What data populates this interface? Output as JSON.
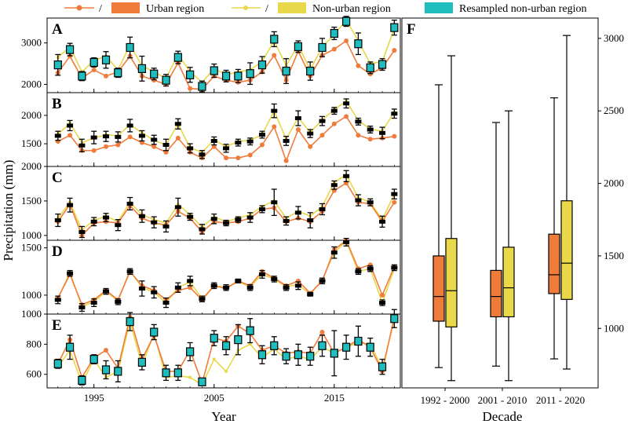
{
  "chart_data": [
    {
      "type": "line",
      "layout": "five stacked panels sharing one x axis",
      "legend": {
        "position": "top",
        "entries": [
          {
            "name": "Urban region",
            "color": "#f07c3c",
            "marker": "line with circle and bar swatch",
            "separator": "/"
          },
          {
            "name": "Non-urban region",
            "color": "#e8d84a",
            "marker": "line with circle and bar swatch",
            "separator": "/"
          },
          {
            "name": "Resampled non-urban region",
            "color": "#1fbdbd",
            "marker": "box swatch"
          }
        ]
      },
      "xlabel": "Year",
      "ylabel": "Precipitation (mm)",
      "x_range": [
        1991.1,
        2020.5
      ],
      "x_ticks": [
        1995,
        2005,
        2015
      ],
      "x_tick_labels": [
        "1995",
        "2005",
        "2015"
      ],
      "years": [
        1992,
        1993,
        1994,
        1995,
        1996,
        1997,
        1998,
        1999,
        2000,
        2001,
        2002,
        2003,
        2004,
        2005,
        2006,
        2007,
        2008,
        2009,
        2010,
        2011,
        2012,
        2013,
        2014,
        2015,
        2016,
        2017,
        2018,
        2019,
        2020
      ],
      "panels": [
        {
          "label": "A",
          "ylim": [
            1800,
            3600
          ],
          "y_ticks": [
            2000,
            3000
          ],
          "y_tick_labels": [
            "2000",
            "3000"
          ],
          "resampled_box_color": "#1fbdbd",
          "urban": [
            2280,
            2680,
            2150,
            2350,
            2200,
            2300,
            2680,
            2200,
            2100,
            2000,
            2520,
            1900,
            1880,
            2200,
            2100,
            2050,
            2100,
            2300,
            2700,
            2100,
            2800,
            2200,
            2700,
            2850,
            3050,
            2450,
            2250,
            2400,
            2820
          ],
          "non_urban": [
            2650,
            2900,
            2300,
            2580,
            2680,
            2350,
            2950,
            2450,
            2300,
            2150,
            2720,
            2300,
            2050,
            2380,
            2230,
            2300,
            2350,
            2550,
            3050,
            2450,
            2950,
            2350,
            2900,
            3200,
            3550,
            3050,
            2500,
            2550,
            3350
          ],
          "resampled_mean": [
            2470,
            2840,
            2200,
            2530,
            2590,
            2280,
            2890,
            2380,
            2250,
            2100,
            2650,
            2230,
            1950,
            2330,
            2200,
            2200,
            2260,
            2470,
            3090,
            2320,
            2910,
            2320,
            2890,
            3230,
            3520,
            2980,
            2400,
            2480,
            3370
          ],
          "resampled_err": [
            250,
            150,
            110,
            110,
            200,
            110,
            250,
            300,
            140,
            140,
            150,
            180,
            130,
            160,
            140,
            160,
            260,
            200,
            180,
            300,
            140,
            220,
            220,
            150,
            120,
            260,
            140,
            140,
            180
          ]
        },
        {
          "label": "B",
          "ylim": [
            1100,
            2400
          ],
          "y_ticks": [
            1500,
            2000
          ],
          "y_tick_labels": [
            "1500",
            "2000"
          ],
          "resampled_box_color": "#000000",
          "urban": [
            1540,
            1650,
            1380,
            1380,
            1450,
            1480,
            1620,
            1520,
            1450,
            1350,
            1600,
            1350,
            1250,
            1450,
            1250,
            1250,
            1300,
            1480,
            1800,
            1200,
            1750,
            1450,
            1650,
            1850,
            1980,
            1650,
            1580,
            1600,
            1630
          ],
          "non_urban": [
            1670,
            1860,
            1520,
            1600,
            1660,
            1640,
            1840,
            1690,
            1560,
            1480,
            1850,
            1430,
            1350,
            1570,
            1450,
            1540,
            1560,
            1660,
            2080,
            1580,
            1960,
            1700,
            1920,
            2100,
            2250,
            1910,
            1760,
            1720,
            2060
          ],
          "resampled_mean": [
            1640,
            1820,
            1470,
            1610,
            1630,
            1620,
            1820,
            1640,
            1570,
            1480,
            1850,
            1420,
            1310,
            1550,
            1420,
            1520,
            1540,
            1660,
            2080,
            1550,
            1950,
            1680,
            1900,
            2080,
            2210,
            1890,
            1750,
            1690,
            2030
          ],
          "resampled_err": [
            80,
            90,
            110,
            110,
            90,
            90,
            110,
            90,
            80,
            100,
            90,
            80,
            70,
            70,
            70,
            60,
            60,
            60,
            120,
            80,
            130,
            70,
            80,
            60,
            80,
            60,
            60,
            100,
            80
          ]
        },
        {
          "label": "C",
          "ylim": [
            930,
            2000
          ],
          "y_ticks": [
            1000,
            1500,
            2000
          ],
          "y_tick_labels": [
            "1000",
            "1500",
            "2000"
          ],
          "resampled_box_color": "#000000",
          "urban": [
            1200,
            1450,
            1000,
            1180,
            1200,
            1180,
            1430,
            1250,
            1180,
            1150,
            1350,
            1250,
            1050,
            1200,
            1180,
            1200,
            1250,
            1380,
            1400,
            1200,
            1250,
            1200,
            1350,
            1650,
            1760,
            1480,
            1460,
            1200,
            1480
          ],
          "non_urban": [
            1250,
            1480,
            1080,
            1220,
            1280,
            1200,
            1480,
            1300,
            1230,
            1180,
            1450,
            1300,
            1120,
            1270,
            1200,
            1250,
            1300,
            1420,
            1500,
            1250,
            1350,
            1280,
            1420,
            1770,
            1880,
            1550,
            1480,
            1230,
            1600
          ],
          "resampled_mean": [
            1220,
            1440,
            1050,
            1200,
            1260,
            1150,
            1460,
            1280,
            1190,
            1130,
            1410,
            1270,
            1090,
            1240,
            1180,
            1230,
            1260,
            1380,
            1480,
            1210,
            1330,
            1220,
            1380,
            1730,
            1860,
            1510,
            1480,
            1200,
            1600
          ],
          "resampled_err": [
            90,
            100,
            80,
            60,
            60,
            80,
            90,
            90,
            80,
            80,
            130,
            50,
            70,
            70,
            40,
            40,
            70,
            50,
            190,
            60,
            90,
            110,
            80,
            60,
            80,
            80,
            50,
            80,
            70
          ]
        },
        {
          "label": "D",
          "ylim": [
            800,
            1580
          ],
          "y_ticks": [
            1000,
            1500
          ],
          "y_tick_labels": [
            "1000",
            "1500"
          ],
          "resampled_box_color": "#000000",
          "urban": [
            970,
            1220,
            900,
            950,
            1050,
            950,
            1250,
            1100,
            1050,
            950,
            1050,
            1080,
            950,
            1100,
            1070,
            1150,
            1100,
            1250,
            1180,
            1100,
            1150,
            1020,
            1150,
            1480,
            1580,
            1280,
            1320,
            1000,
            1300
          ],
          "non_urban": [
            960,
            1240,
            880,
            930,
            1040,
            940,
            1260,
            1080,
            1030,
            920,
            1080,
            1140,
            960,
            1100,
            1080,
            1140,
            1090,
            1220,
            1170,
            1090,
            1110,
            1010,
            1160,
            1450,
            1570,
            1250,
            1280,
            920,
            1280
          ],
          "resampled_mean": [
            950,
            1230,
            870,
            920,
            1040,
            930,
            1250,
            1070,
            1030,
            920,
            1080,
            1150,
            960,
            1100,
            1080,
            1150,
            1080,
            1220,
            1170,
            1080,
            1100,
            1010,
            1150,
            1450,
            1560,
            1250,
            1280,
            920,
            1290
          ],
          "resampled_err": [
            40,
            30,
            40,
            40,
            30,
            30,
            30,
            80,
            60,
            50,
            50,
            50,
            30,
            30,
            30,
            20,
            30,
            40,
            30,
            30,
            40,
            20,
            30,
            60,
            40,
            30,
            30,
            30,
            30
          ]
        },
        {
          "label": "E",
          "ylim": [
            510,
            1000
          ],
          "y_ticks": [
            600,
            800,
            1000
          ],
          "y_tick_labels": [
            "600",
            "800",
            "1000"
          ],
          "resampled_box_color": "#1fbdbd",
          "urban": [
            670,
            830,
            580,
            710,
            760,
            640,
            980,
            700,
            860,
            620,
            620,
            760,
            540,
            840,
            820,
            920,
            870,
            760,
            790,
            740,
            750,
            740,
            880,
            740,
            780,
            830,
            780,
            620,
            980
          ],
          "non_urban": [
            650,
            760,
            540,
            700,
            580,
            620,
            950,
            660,
            870,
            580,
            590,
            580,
            530,
            700,
            620,
            760,
            800,
            710,
            770,
            700,
            720,
            700,
            780,
            740,
            780,
            810,
            800,
            640,
            960
          ],
          "resampled_mean": [
            670,
            780,
            560,
            700,
            630,
            620,
            950,
            680,
            880,
            610,
            610,
            750,
            550,
            840,
            790,
            830,
            890,
            730,
            790,
            720,
            730,
            720,
            790,
            740,
            780,
            820,
            780,
            650,
            970
          ],
          "resampled_err": [
            30,
            80,
            30,
            30,
            60,
            70,
            60,
            50,
            50,
            50,
            50,
            60,
            20,
            50,
            60,
            100,
            80,
            60,
            60,
            50,
            70,
            60,
            70,
            150,
            80,
            100,
            60,
            50,
            60
          ]
        }
      ]
    },
    {
      "type": "box",
      "label": "F",
      "xlabel": "Decade",
      "categories": [
        "1992 - 2000",
        "2001 - 2010",
        "2011 - 2020"
      ],
      "ylim": [
        590,
        3140
      ],
      "y_ticks": [
        1000,
        1500,
        2000,
        2500,
        3000
      ],
      "y_tick_labels": [
        "1000",
        "1500",
        "2000",
        "2500",
        "3000"
      ],
      "y_axis_side": "right",
      "series": [
        {
          "name": "Urban region",
          "color": "#f07c3c",
          "boxes": [
            {
              "whisker_low": 730,
              "q1": 1050,
              "median": 1220,
              "q3": 1500,
              "whisker_high": null
            },
            {
              "whisker_low": 740,
              "q1": 1080,
              "median": 1220,
              "q3": 1400,
              "whisker_high": null
            },
            {
              "whisker_low": 790,
              "q1": 1240,
              "median": 1370,
              "q3": 1650,
              "whisker_high": 2590
            }
          ]
        },
        {
          "name": "Non-urban region",
          "color": "#e8d84a",
          "boxes": [
            {
              "whisker_low": 640,
              "q1": 1010,
              "median": 1260,
              "q3": 1620,
              "whisker_high": 2880
            },
            {
              "whisker_low": 640,
              "q1": 1080,
              "median": 1280,
              "q3": 1560,
              "whisker_high": 2500
            },
            {
              "whisker_low": 720,
              "q1": 1200,
              "median": 1450,
              "q3": 1880,
              "whisker_high": 3020
            }
          ]
        }
      ],
      "whisker_high_shared": [
        2680,
        2420,
        null
      ]
    }
  ]
}
